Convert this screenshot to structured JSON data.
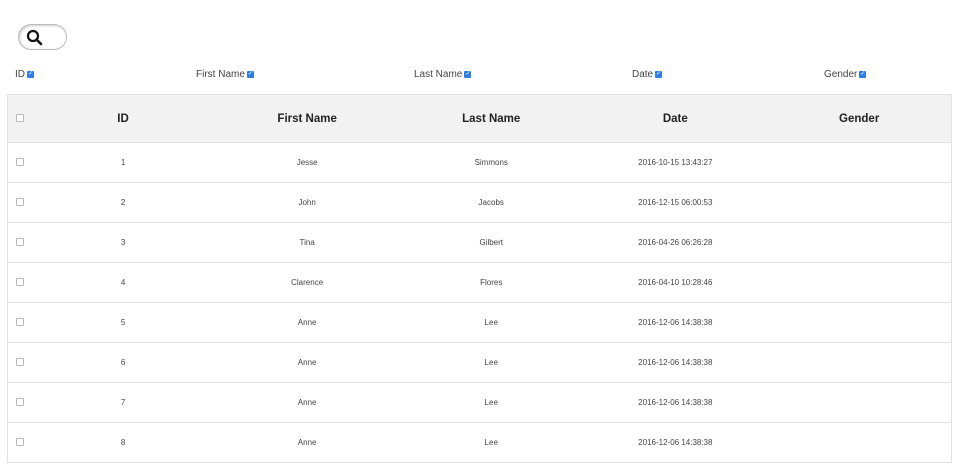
{
  "search": {
    "icon": "search-icon"
  },
  "column_toggles": [
    {
      "label": "ID",
      "checked": true
    },
    {
      "label": "First Name",
      "checked": true
    },
    {
      "label": "Last Name",
      "checked": true
    },
    {
      "label": "Date",
      "checked": true
    },
    {
      "label": "Gender",
      "checked": true
    }
  ],
  "table": {
    "headers": [
      "ID",
      "First Name",
      "Last Name",
      "Date",
      "Gender"
    ],
    "rows": [
      {
        "id": "1",
        "first": "Jesse",
        "last": "Simmons",
        "date": "2016-10-15 13:43:27",
        "gender": ""
      },
      {
        "id": "2",
        "first": "John",
        "last": "Jacobs",
        "date": "2016-12-15 06:00:53",
        "gender": ""
      },
      {
        "id": "3",
        "first": "Tina",
        "last": "Gilbert",
        "date": "2016-04-26 06:26:28",
        "gender": ""
      },
      {
        "id": "4",
        "first": "Clarence",
        "last": "Flores",
        "date": "2016-04-10 10:28:46",
        "gender": ""
      },
      {
        "id": "5",
        "first": "Anne",
        "last": "Lee",
        "date": "2016-12-06 14:38:38",
        "gender": ""
      },
      {
        "id": "6",
        "first": "Anne",
        "last": "Lee",
        "date": "2016-12-06 14:38:38",
        "gender": ""
      },
      {
        "id": "7",
        "first": "Anne",
        "last": "Lee",
        "date": "2016-12-06 14:38:38",
        "gender": ""
      },
      {
        "id": "8",
        "first": "Anne",
        "last": "Lee",
        "date": "2016-12-06 14:38:38",
        "gender": ""
      }
    ]
  },
  "colors": {
    "accent": "#2f7de1",
    "header_bg": "#f2f2f2"
  }
}
